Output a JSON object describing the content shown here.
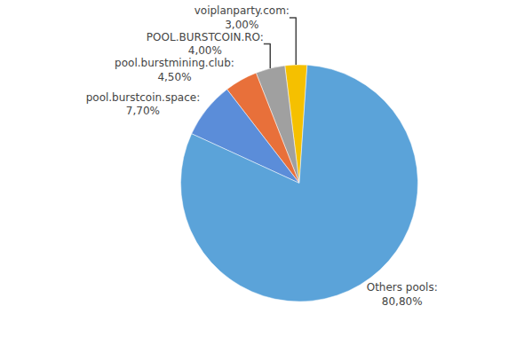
{
  "chart_data": {
    "type": "pie",
    "labels": [
      "voiplanparty.com:\n3,00%",
      "POOL.BURSTCOIN.RO:\n4,00%",
      "pool.burstmining.club:\n4,50%",
      "pool.burstcoin.space:\n7,70%",
      "Others pools:\n80,80%"
    ],
    "values": [
      3.0,
      4.0,
      4.5,
      7.7,
      80.8
    ],
    "colors": [
      "#F5C000",
      "#A0A0A0",
      "#E8703A",
      "#5B8DD9",
      "#5BA3D9"
    ]
  }
}
